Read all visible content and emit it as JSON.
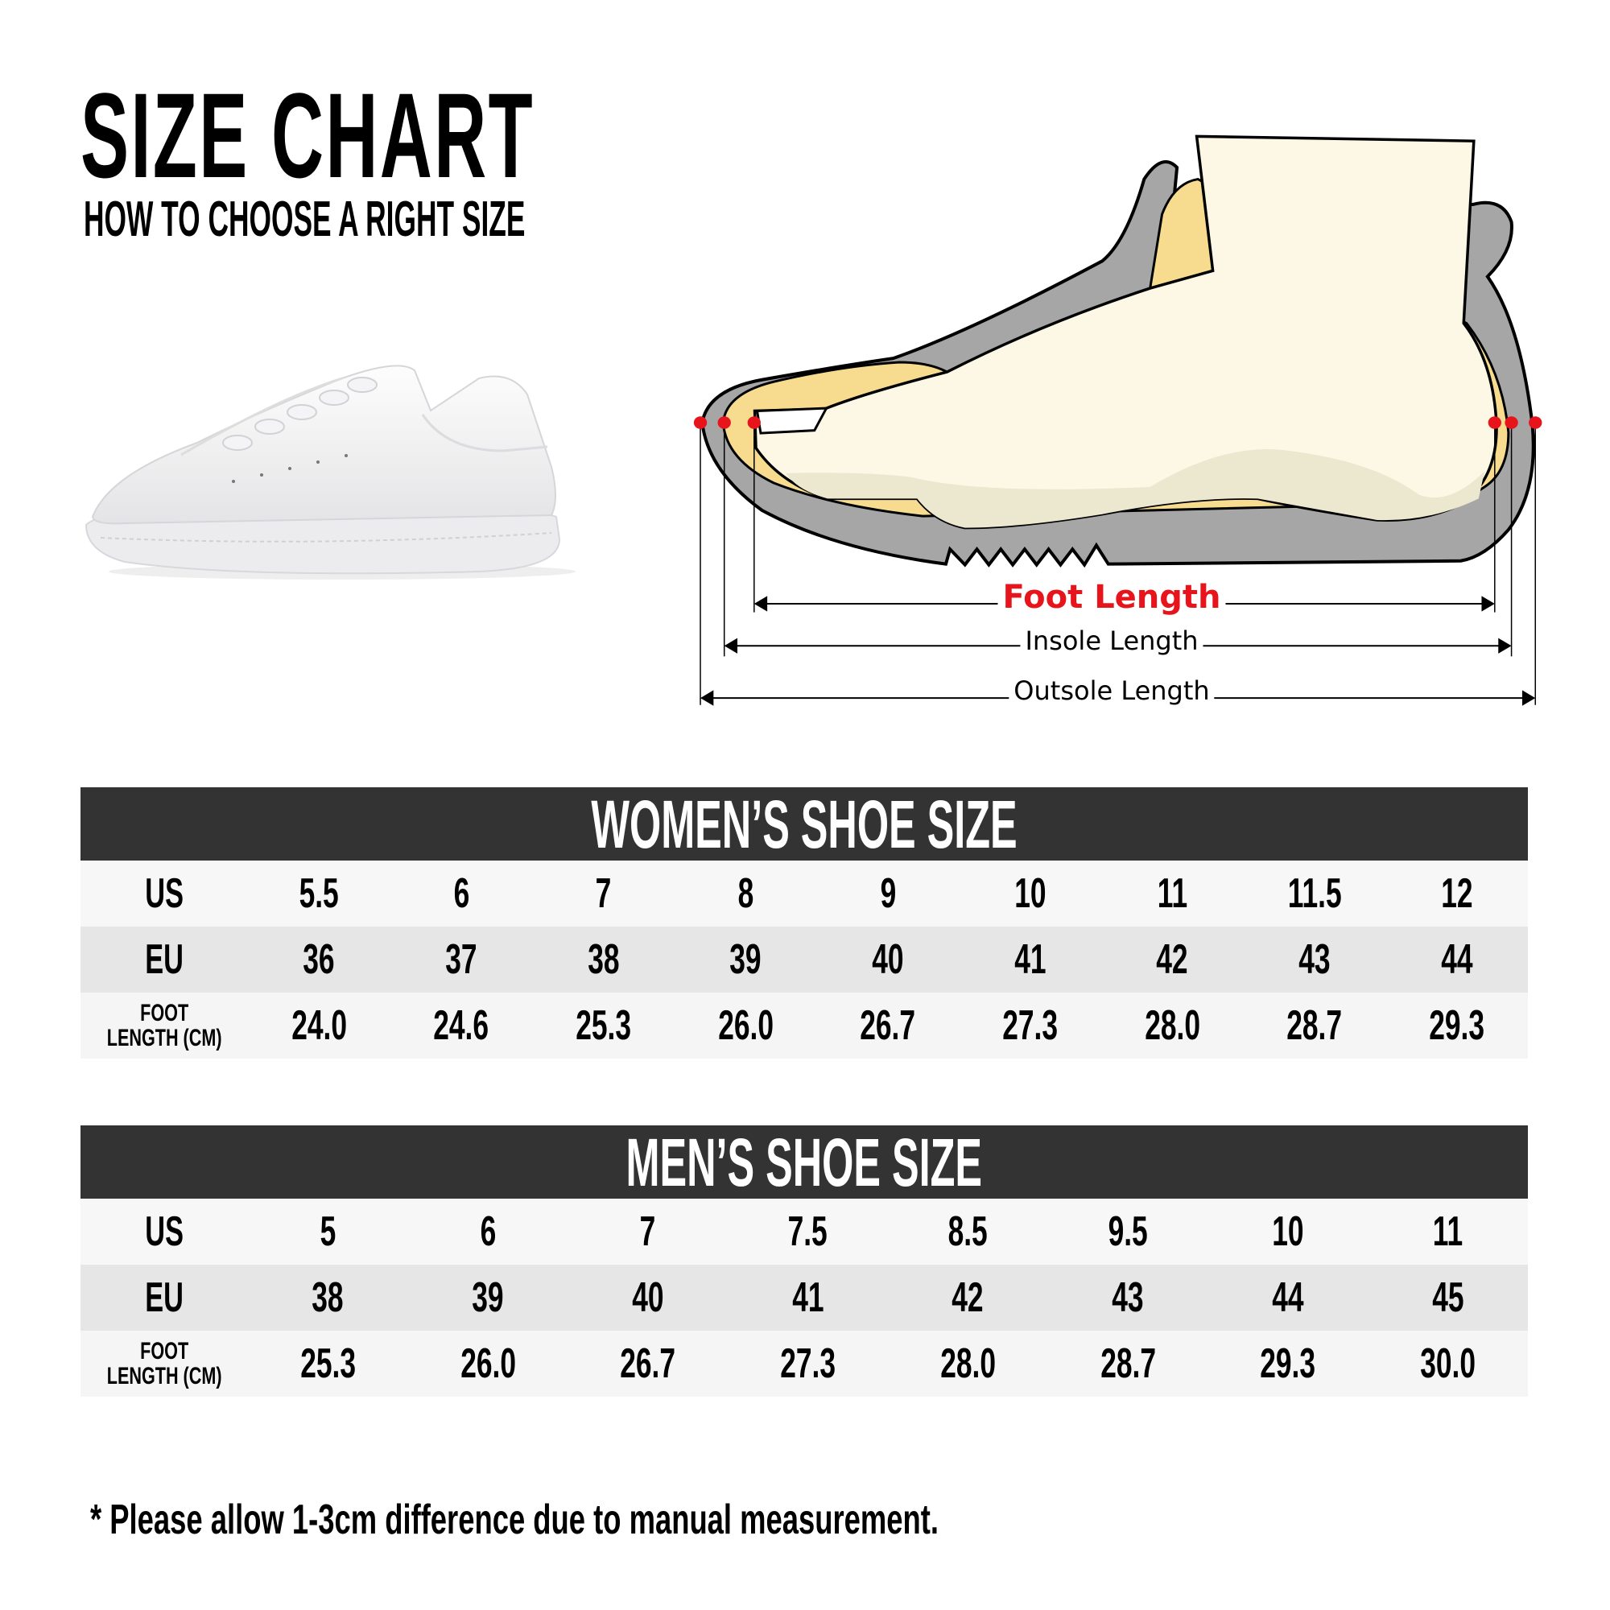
{
  "header": {
    "title": "SIZE CHART",
    "subtitle": "HOW TO CHOOSE A RIGHT SIZE"
  },
  "diagram": {
    "foot_length": "Foot Length",
    "insole_length": "Insole Length",
    "outsole_length": "Outsole Length",
    "colors": {
      "foot_length": "#e8141c",
      "shoe": "#a6a6a6",
      "lining": "#f7dc8f",
      "foot": "#fdf8e6"
    }
  },
  "women": {
    "title": "WOMEN’S SHOE SIZE",
    "labels": {
      "us": "US",
      "eu": "EU",
      "foot_1": "FOOT",
      "foot_2": "LENGTH (CM)"
    },
    "us": [
      "5.5",
      "6",
      "7",
      "8",
      "9",
      "10",
      "11",
      "11.5",
      "12"
    ],
    "eu": [
      "36",
      "37",
      "38",
      "39",
      "40",
      "41",
      "42",
      "43",
      "44"
    ],
    "foot": [
      "24.0",
      "24.6",
      "25.3",
      "26.0",
      "26.7",
      "27.3",
      "28.0",
      "28.7",
      "29.3"
    ]
  },
  "men": {
    "title": "MEN’S SHOE SIZE",
    "labels": {
      "us": "US",
      "eu": "EU",
      "foot_1": "FOOT",
      "foot_2": "LENGTH (CM)"
    },
    "us": [
      "5",
      "6",
      "7",
      "7.5",
      "8.5",
      "9.5",
      "10",
      "11"
    ],
    "eu": [
      "38",
      "39",
      "40",
      "41",
      "42",
      "43",
      "44",
      "45"
    ],
    "foot": [
      "25.3",
      "26.0",
      "26.7",
      "27.3",
      "28.0",
      "28.7",
      "29.3",
      "30.0"
    ]
  },
  "note": "* Please allow 1-3cm difference due to manual measurement.",
  "colors": {
    "header_bg": "#333333",
    "row_light": "#f7f7f7",
    "row_dark": "#e6e6e6"
  }
}
